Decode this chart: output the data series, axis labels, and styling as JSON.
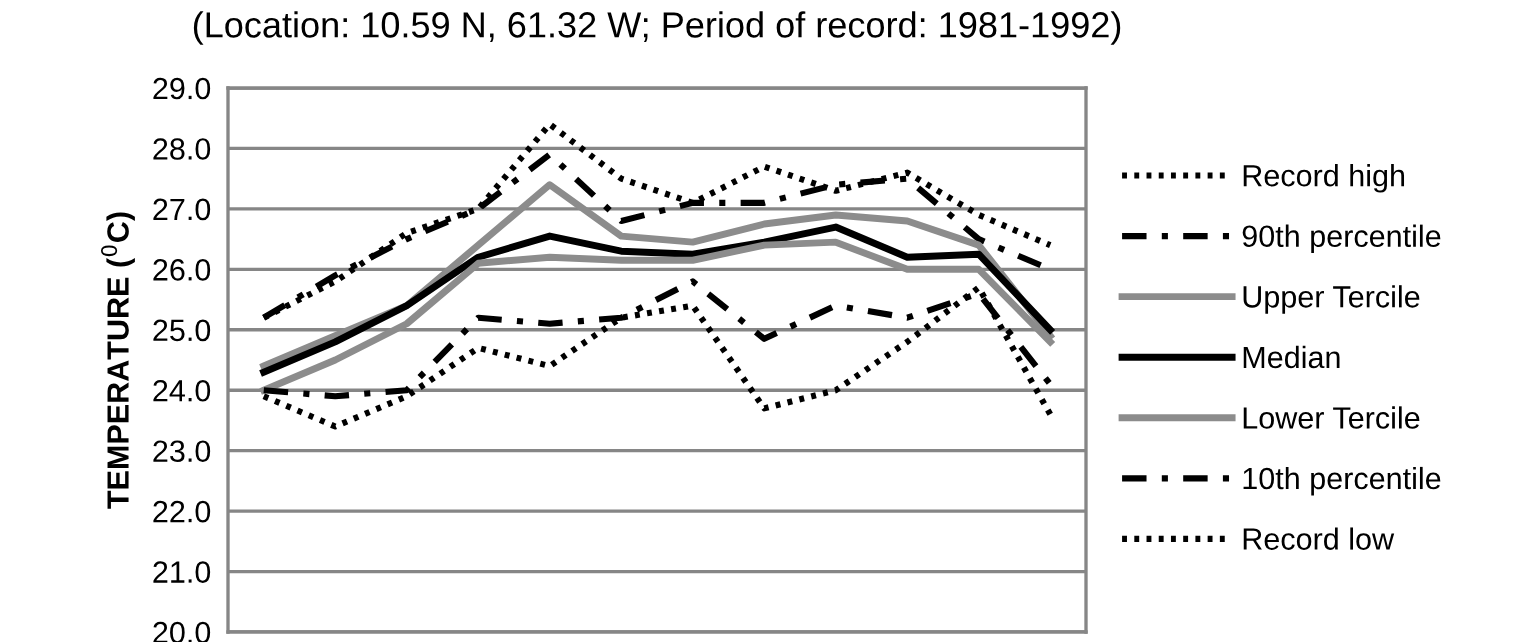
{
  "chart_data": {
    "type": "line",
    "title": "(Location: 10.59 N, 61.32 W; Period of record: 1981-1992)",
    "ylabel": "TEMPERATURE ($^{0}$C)",
    "categories": [
      null,
      null,
      null,
      null,
      null,
      null,
      null,
      null,
      null,
      null,
      null,
      null
    ],
    "series": [
      {
        "name": "Record high",
        "color": "#000000",
        "line_style": "dotted",
        "values": [
          25.2,
          25.8,
          26.6,
          27.0,
          28.4,
          27.5,
          27.1,
          27.7,
          27.3,
          27.6,
          26.9,
          26.4
        ]
      },
      {
        "name": "90th percentile",
        "color": "#000000",
        "line_style": "dashed",
        "values": [
          25.2,
          25.9,
          26.5,
          27.0,
          27.9,
          26.8,
          27.1,
          27.1,
          27.4,
          27.5,
          26.5,
          26.0
        ]
      },
      {
        "name": "Upper Tercile",
        "color": "#8c8c8c",
        "line_style": "solid",
        "values": [
          24.4,
          24.9,
          25.4,
          26.4,
          27.4,
          26.55,
          26.45,
          26.75,
          26.9,
          26.8,
          26.4,
          24.9
        ]
      },
      {
        "name": "Median",
        "color": "#000000",
        "line_style": "solid",
        "values": [
          24.3,
          24.8,
          25.4,
          26.2,
          26.55,
          26.3,
          26.25,
          26.45,
          26.7,
          26.2,
          26.25,
          25.0
        ]
      },
      {
        "name": "Lower Tercile",
        "color": "#8c8c8c",
        "line_style": "solid",
        "values": [
          24.0,
          24.5,
          25.1,
          26.1,
          26.2,
          26.15,
          26.15,
          26.4,
          26.45,
          26.0,
          26.0,
          24.8
        ]
      },
      {
        "name": "10th percentile",
        "color": "#000000",
        "line_style": "dashed",
        "values": [
          24.0,
          23.9,
          24.0,
          25.2,
          25.1,
          25.2,
          25.8,
          24.85,
          25.4,
          25.2,
          25.6,
          24.1
        ]
      },
      {
        "name": "Record low",
        "color": "#000000",
        "line_style": "dotted",
        "values": [
          23.9,
          23.4,
          23.9,
          24.7,
          24.4,
          25.2,
          25.4,
          23.7,
          24.0,
          24.8,
          25.7,
          23.6
        ]
      }
    ],
    "ylim": [
      20.0,
      29.0
    ],
    "yticks": [
      {
        "value": 20,
        "label": "20.0"
      },
      {
        "value": 21,
        "label": "21.0"
      },
      {
        "value": 22,
        "label": "22.0"
      },
      {
        "value": 23,
        "label": "23.0"
      },
      {
        "value": 24,
        "label": "24.0"
      },
      {
        "value": 25,
        "label": "25.0"
      },
      {
        "value": 26,
        "label": "26.0"
      },
      {
        "value": 27,
        "label": "27.0"
      },
      {
        "value": 28,
        "label": "28.0"
      },
      {
        "value": 29,
        "label": "29.0"
      }
    ],
    "grid": "y",
    "legend": "right",
    "tick_labels": "y",
    "marker": "none"
  }
}
